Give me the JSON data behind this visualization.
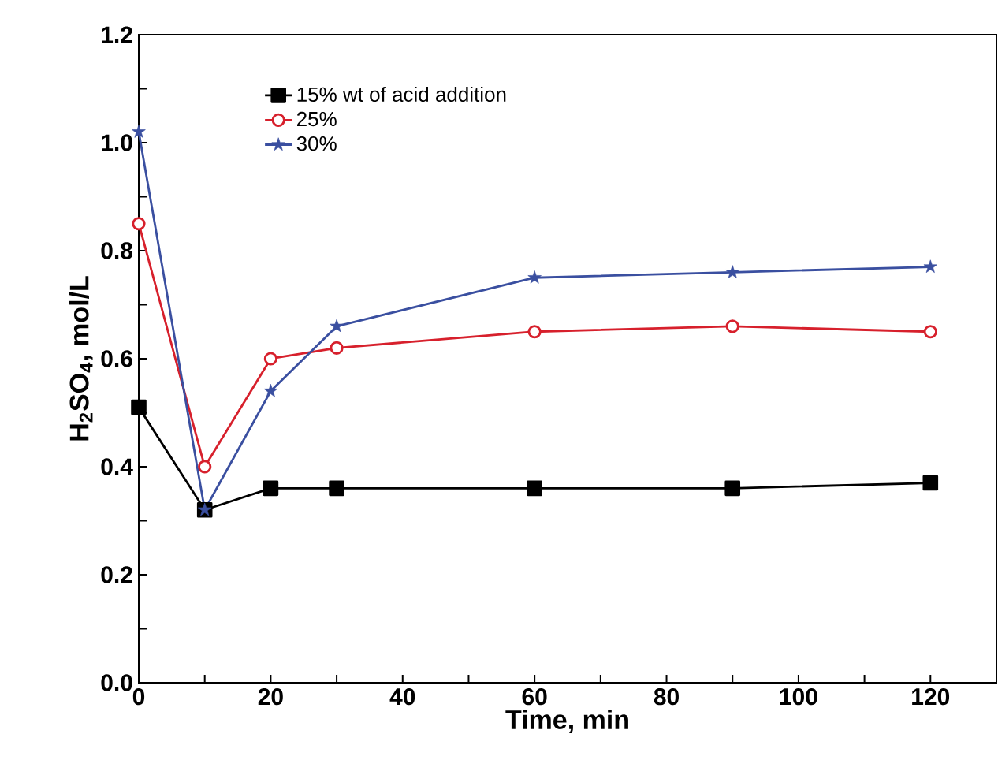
{
  "chart_data": {
    "type": "line",
    "xlabel": "Time, min",
    "ylabel": "H$_{2}$SO$_{4}$, mol/L",
    "x": [
      0,
      10,
      20,
      30,
      60,
      90,
      120
    ],
    "series": [
      {
        "name": "15% wt of acid addition",
        "color": "#000000",
        "marker": "square",
        "values": [
          0.51,
          0.32,
          0.36,
          0.36,
          0.36,
          0.36,
          0.37
        ]
      },
      {
        "name": "25%",
        "color": "#d7202c",
        "marker": "circle",
        "values": [
          0.85,
          0.4,
          0.6,
          0.62,
          0.65,
          0.66,
          0.65
        ]
      },
      {
        "name": "30%",
        "color": "#3a4fa0",
        "marker": "star",
        "values": [
          1.02,
          0.32,
          0.54,
          0.66,
          0.75,
          0.76,
          0.77
        ]
      }
    ],
    "xlim": [
      0,
      130
    ],
    "ylim": [
      0,
      1.2
    ],
    "xticks": [
      0,
      {
        "value": 10,
        "label": null
      },
      20,
      {
        "value": 30,
        "label": null
      },
      40,
      {
        "value": 50,
        "label": null
      },
      60,
      {
        "value": 70,
        "label": null
      },
      80,
      {
        "value": 90,
        "label": null
      },
      100,
      {
        "value": 110,
        "label": null
      },
      120
    ],
    "yticks": [
      "0.0",
      {
        "value": 0.1,
        "label": null
      },
      {
        "value": 0.2,
        "label": "0.2"
      },
      {
        "value": 0.3,
        "label": null
      },
      {
        "value": 0.4,
        "label": "0.4"
      },
      {
        "value": 0.5,
        "label": null
      },
      {
        "value": 0.6,
        "label": "0.6"
      },
      {
        "value": 0.7,
        "label": null
      },
      {
        "value": 0.8,
        "label": "0.8"
      },
      {
        "value": 0.9,
        "label": null
      },
      {
        "value": 1.0,
        "label": "1.0"
      },
      {
        "value": 1.1,
        "label": null
      },
      {
        "value": 1.2,
        "label": "1.2"
      }
    ],
    "grid": false,
    "legend": "top left",
    "line_style": "solid"
  }
}
